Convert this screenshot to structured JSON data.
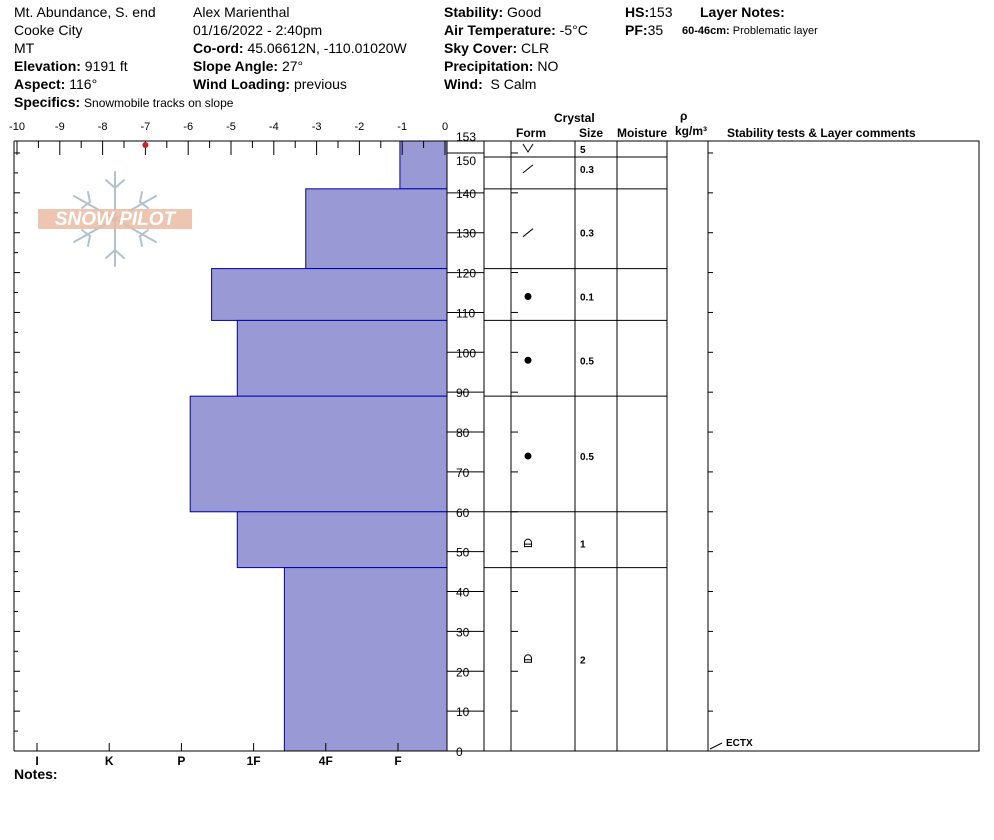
{
  "header": {
    "location": "Mt. Abundance, S. end",
    "city": "Cooke City",
    "state": "MT",
    "elevation_label": "Elevation:",
    "elevation_value": "9191 ft",
    "aspect_label": "Aspect:",
    "aspect_value": "116°",
    "specifics_label": "Specifics:",
    "specifics_value": "Snowmobile tracks on slope",
    "observer": "Alex Marienthal",
    "datetime": "01/16/2022 - 2:40pm",
    "coord_label": "Co-ord:",
    "coord_value": "45.06612N, -110.01020W",
    "slope_label": "Slope Angle:",
    "slope_value": "27°",
    "wind_loading_label": "Wind Loading:",
    "wind_loading_value": "previous",
    "stability_label": "Stability:",
    "stability_value": "Good",
    "air_temp_label": "Air Temperature:",
    "air_temp_value": "-5°C",
    "sky_label": "Sky Cover:",
    "sky_value": "CLR",
    "precip_label": "Precipitation:",
    "precip_value": "NO",
    "wind_label": "Wind:",
    "wind_value": "S Calm",
    "hs_label": "HS:",
    "hs_value": "153",
    "pf_label": "PF:",
    "pf_value": "35",
    "layer_notes_label": "Layer Notes:",
    "layer_note_range": "60-46cm:",
    "layer_note_text": "Problematic layer"
  },
  "logo": {
    "text": "SNOW PILOT"
  },
  "table_headers": {
    "crystal": "Crystal",
    "form": "Form",
    "size": "Size",
    "moisture": "Moisture",
    "rho": "ρ",
    "density_unit": "kg/m³",
    "comments": "Stability tests & Layer comments"
  },
  "notes_label": "Notes:",
  "colors": {
    "hardness_fill": "#9999d6",
    "hardness_stroke": "#0000aa",
    "temp_point": "#cc2222"
  },
  "chart_data": {
    "type": "bar",
    "orientation": "horizontal",
    "temperature_axis": {
      "ticks": [
        "-10",
        "-9",
        "-8",
        "-7",
        "-6",
        "-5",
        "-4",
        "-3",
        "-2",
        "-1",
        "0"
      ],
      "range": [
        -10,
        0
      ]
    },
    "hardness_axis": {
      "labels": [
        "I",
        "K",
        "P",
        "1F",
        "4F",
        "F"
      ]
    },
    "height_axis": {
      "range": [
        0,
        153
      ],
      "ticks": [
        "0",
        "10",
        "20",
        "30",
        "40",
        "50",
        "60",
        "70",
        "80",
        "90",
        "100",
        "110",
        "120",
        "130",
        "140",
        "150",
        "153"
      ]
    },
    "hardness_layers": [
      {
        "top": 153,
        "bottom": 141,
        "hardness": 1.1
      },
      {
        "top": 141,
        "bottom": 121,
        "hardness": 3.3
      },
      {
        "top": 121,
        "bottom": 108,
        "hardness": 5.5
      },
      {
        "top": 108,
        "bottom": 89,
        "hardness": 4.9
      },
      {
        "top": 89,
        "bottom": 60,
        "hardness": 6.0
      },
      {
        "top": 60,
        "bottom": 46,
        "hardness": 4.9
      },
      {
        "top": 46,
        "bottom": 0,
        "hardness": 3.8
      }
    ],
    "temperature_points": [
      {
        "height": 153,
        "temp": -7
      }
    ],
    "layers": [
      {
        "top": 153,
        "bottom": 149,
        "form": "surface-hoar",
        "size": "5",
        "form_h": 151
      },
      {
        "top": 149,
        "bottom": 141,
        "form": "decomposing",
        "size": "0.3",
        "form_h": 146
      },
      {
        "top": 141,
        "bottom": 121,
        "form": "decomposing",
        "size": "0.3",
        "form_h": 130
      },
      {
        "top": 121,
        "bottom": 108,
        "form": "rounded",
        "size": "0.1",
        "form_h": 114
      },
      {
        "top": 108,
        "bottom": 89,
        "form": "rounded",
        "size": "0.5",
        "form_h": 98
      },
      {
        "top": 89,
        "bottom": 60,
        "form": "rounded",
        "size": "0.5",
        "form_h": 74
      },
      {
        "top": 60,
        "bottom": 46,
        "form": "depth-hoar",
        "size": "1",
        "form_h": 52
      },
      {
        "top": 46,
        "bottom": 0,
        "form": "depth-hoar",
        "size": "2",
        "form_h": 23
      }
    ],
    "stability_tests": [
      {
        "height": 0,
        "label": "ECTX"
      }
    ]
  }
}
